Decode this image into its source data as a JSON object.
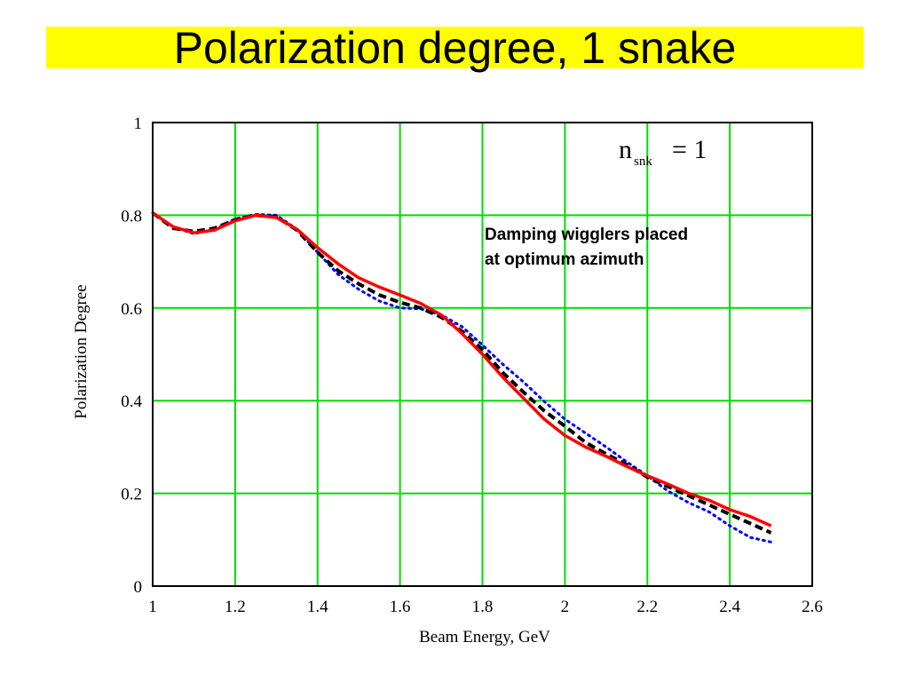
{
  "title": "Polarization degree, 1 snake",
  "colors": {
    "title_background": "#ffff00",
    "grid": "#00dd00",
    "series_red": "#ff0000",
    "series_black": "#000000",
    "series_blue": "#0000ff"
  },
  "chart_data": {
    "type": "line",
    "title": "Polarization degree, 1 snake",
    "xlabel": "Beam Energy, GeV",
    "ylabel": "Polarization Degree",
    "xlim": [
      1,
      2.6
    ],
    "ylim": [
      0,
      1
    ],
    "grid": true,
    "x_ticks": [
      "1",
      "1.2",
      "1.4",
      "1.6",
      "1.8",
      "2",
      "2.2",
      "2.4",
      "2.6"
    ],
    "y_ticks": [
      "0",
      "0.2",
      "0.4",
      "0.6",
      "0.8",
      "1"
    ],
    "annotations": {
      "formula_base": "n",
      "formula_sub": "snk",
      "formula_rhs": "= 1",
      "note_line1": "Damping wigglers placed",
      "note_line2": "at optimum azimuth"
    },
    "series": [
      {
        "style": "solid",
        "color": "#ff0000",
        "x": [
          1.0,
          1.05,
          1.1,
          1.15,
          1.2,
          1.25,
          1.3,
          1.35,
          1.4,
          1.45,
          1.5,
          1.55,
          1.6,
          1.65,
          1.7,
          1.75,
          1.8,
          1.85,
          1.9,
          1.95,
          2.0,
          2.05,
          2.1,
          2.15,
          2.2,
          2.25,
          2.3,
          2.35,
          2.4,
          2.45,
          2.5
        ],
        "y": [
          0.805,
          0.775,
          0.762,
          0.768,
          0.788,
          0.8,
          0.795,
          0.77,
          0.73,
          0.695,
          0.665,
          0.645,
          0.628,
          0.61,
          0.585,
          0.545,
          0.5,
          0.45,
          0.405,
          0.36,
          0.325,
          0.3,
          0.28,
          0.258,
          0.238,
          0.22,
          0.2,
          0.185,
          0.165,
          0.15,
          0.13
        ]
      },
      {
        "style": "dashed",
        "color": "#000000",
        "x": [
          1.0,
          1.05,
          1.1,
          1.15,
          1.2,
          1.25,
          1.3,
          1.35,
          1.4,
          1.45,
          1.5,
          1.55,
          1.6,
          1.65,
          1.7,
          1.75,
          1.8,
          1.85,
          1.9,
          1.95,
          2.0,
          2.05,
          2.1,
          2.15,
          2.2,
          2.25,
          2.3,
          2.35,
          2.4,
          2.45,
          2.5
        ],
        "y": [
          0.805,
          0.772,
          0.765,
          0.772,
          0.79,
          0.8,
          0.797,
          0.768,
          0.72,
          0.68,
          0.652,
          0.628,
          0.612,
          0.6,
          0.58,
          0.55,
          0.51,
          0.46,
          0.418,
          0.378,
          0.345,
          0.31,
          0.285,
          0.262,
          0.235,
          0.215,
          0.195,
          0.175,
          0.155,
          0.135,
          0.115
        ]
      },
      {
        "style": "dotted",
        "color": "#0000ff",
        "x": [
          1.0,
          1.05,
          1.1,
          1.15,
          1.2,
          1.25,
          1.3,
          1.35,
          1.4,
          1.45,
          1.5,
          1.55,
          1.6,
          1.65,
          1.7,
          1.75,
          1.8,
          1.85,
          1.9,
          1.95,
          2.0,
          2.05,
          2.1,
          2.15,
          2.2,
          2.25,
          2.3,
          2.35,
          2.4,
          2.45,
          2.5
        ],
        "y": [
          0.805,
          0.775,
          0.76,
          0.77,
          0.792,
          0.802,
          0.8,
          0.77,
          0.72,
          0.672,
          0.64,
          0.615,
          0.6,
          0.598,
          0.585,
          0.56,
          0.52,
          0.478,
          0.44,
          0.398,
          0.36,
          0.33,
          0.3,
          0.268,
          0.238,
          0.205,
          0.18,
          0.16,
          0.13,
          0.105,
          0.095
        ]
      }
    ]
  }
}
